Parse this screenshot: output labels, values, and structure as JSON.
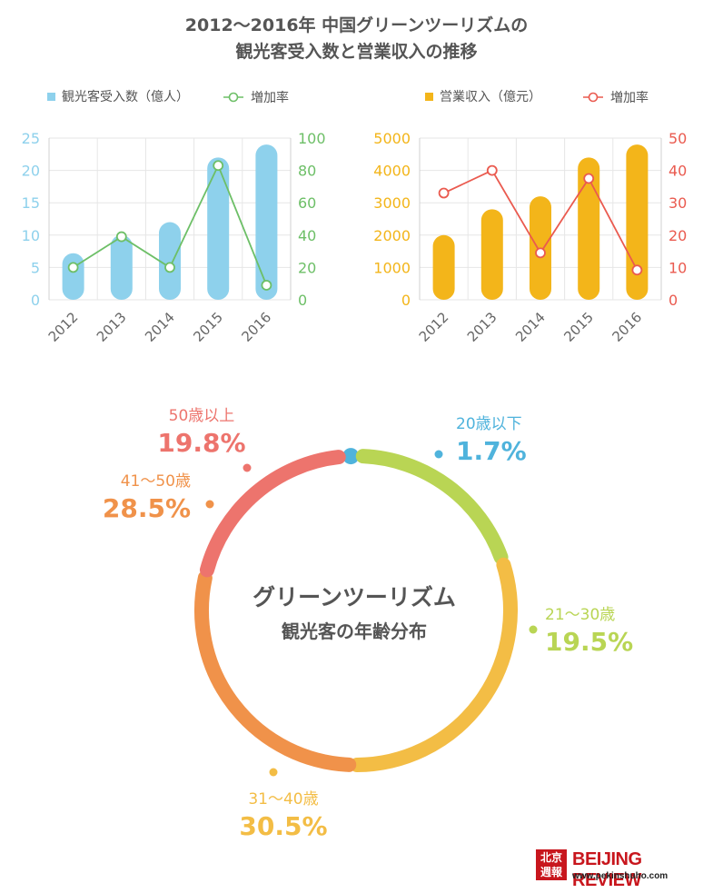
{
  "title": {
    "line1": "2012〜2016年 中国グリーンツーリズムの",
    "line2": "観光客受入数と営業収入の推移"
  },
  "colors": {
    "blue": "#8ed1ec",
    "green": "#6dbf67",
    "orange": "#f3b51a",
    "red": "#ea5a4f",
    "grid": "#e6e6e6",
    "text": "#555555"
  },
  "chart_data": [
    {
      "type": "bar",
      "categories": [
        "2012",
        "2013",
        "2014",
        "2015",
        "2016"
      ],
      "series": [
        {
          "name": "観光客受入数（億人）",
          "values": [
            7.2,
            10.0,
            12.0,
            22.0,
            24.0
          ],
          "axis": "left",
          "kind": "bar",
          "color": "#8ed1ec"
        },
        {
          "name": "増加率",
          "values": [
            20,
            39,
            20,
            83,
            9
          ],
          "axis": "right",
          "kind": "line",
          "color": "#6dbf67"
        }
      ],
      "ylim_left": [
        0,
        25
      ],
      "yticks_left": [
        "0",
        "5",
        "10",
        "15",
        "20",
        "25"
      ],
      "ylim_right": [
        0,
        100
      ],
      "yticks_right": [
        "0",
        "20",
        "40",
        "60",
        "80",
        "100"
      ],
      "grid": true,
      "legend": "top"
    },
    {
      "type": "bar",
      "categories": [
        "2012",
        "2013",
        "2014",
        "2015",
        "2016"
      ],
      "series": [
        {
          "name": "営業収入（億元）",
          "values": [
            2000,
            2800,
            3200,
            4400,
            4800
          ],
          "axis": "left",
          "kind": "bar",
          "color": "#f3b51a"
        },
        {
          "name": "増加率",
          "values": [
            33,
            40,
            14.5,
            37.5,
            9.2
          ],
          "axis": "right",
          "kind": "line",
          "color": "#ea5a4f"
        }
      ],
      "ylim_left": [
        0,
        5000
      ],
      "yticks_left": [
        "0",
        "1000",
        "2000",
        "3000",
        "4000",
        "5000"
      ],
      "ylim_right": [
        0,
        50
      ],
      "yticks_right": [
        "0",
        "10",
        "20",
        "30",
        "40",
        "50"
      ],
      "grid": true,
      "legend": "top"
    },
    {
      "type": "pie",
      "title_line1": "グリーンツーリズム",
      "title_line2": "観光客の年齢分布",
      "slices": [
        {
          "label": "20歳以下",
          "value": 1.7,
          "pct": "1.7%",
          "color": "#4fb3dc"
        },
        {
          "label": "21〜30歳",
          "value": 19.5,
          "pct": "19.5%",
          "color": "#b9d554"
        },
        {
          "label": "31〜40歳",
          "value": 30.5,
          "pct": "30.5%",
          "color": "#f3bd45"
        },
        {
          "label": "41〜50歳",
          "value": 28.5,
          "pct": "28.5%",
          "color": "#f0924a"
        },
        {
          "label": "50歳以上",
          "value": 19.8,
          "pct": "19.8%",
          "color": "#ed746d"
        }
      ]
    }
  ],
  "logo": {
    "chars": "北京週報",
    "name": "BEIJING REVIEW",
    "url": "www.pekinshuho.com"
  }
}
